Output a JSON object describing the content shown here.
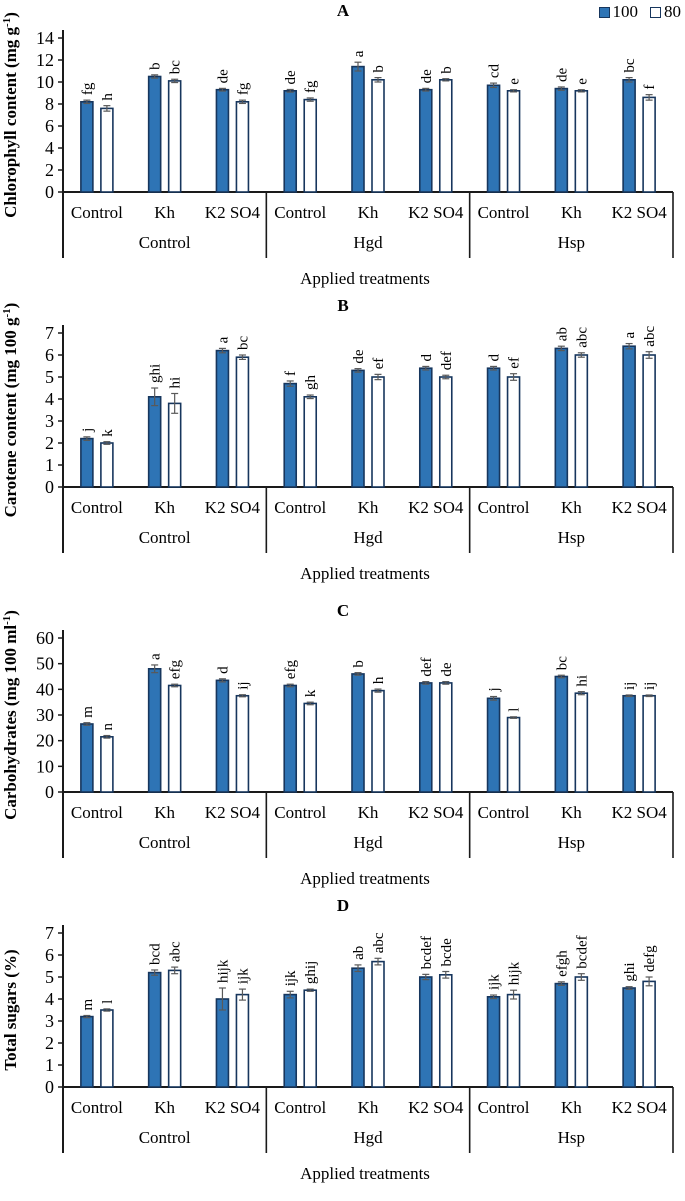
{
  "legend": {
    "items": [
      {
        "label": "100",
        "color": "#2E74B5"
      },
      {
        "label": "80",
        "color": "#FFFFFF"
      }
    ]
  },
  "colors": {
    "bar_fill_100": "#2E74B5",
    "bar_fill_80": "#FFFFFF",
    "bar_outline": "#17365d",
    "axis": "#1a1a1a",
    "error_bar": "#595959"
  },
  "chart_data": [
    {
      "type": "bar",
      "title": "A",
      "ylabel": "Chlorophyll content (mg g-1)",
      "ylabel_parts": [
        "Chlorophyll content (mg g",
        "^-1",
        ")"
      ],
      "xlabel": "Applied treatments",
      "ylim": [
        0,
        14
      ],
      "yticks": [
        0,
        2,
        4,
        6,
        8,
        10,
        12,
        14
      ],
      "groups": [
        "Control",
        "Hgd",
        "Hsp"
      ],
      "categories": [
        "Control",
        "Kh",
        "K2 SO4"
      ],
      "legend_position": "top-right",
      "grid": false,
      "series": [
        {
          "name": "100",
          "values": [
            8.2,
            10.5,
            9.3,
            9.2,
            11.4,
            9.3,
            9.7,
            9.4,
            10.2
          ],
          "errors": [
            0.15,
            0.15,
            0.12,
            0.12,
            0.4,
            0.12,
            0.2,
            0.15,
            0.2
          ],
          "letters": [
            "fg",
            "b",
            "de",
            "de",
            "a",
            "de",
            "cd",
            "de",
            "bc"
          ]
        },
        {
          "name": "80",
          "values": [
            7.6,
            10.1,
            8.2,
            8.4,
            10.2,
            10.2,
            9.2,
            9.2,
            8.6
          ],
          "errors": [
            0.25,
            0.15,
            0.15,
            0.15,
            0.2,
            0.1,
            0.1,
            0.1,
            0.25
          ],
          "letters": [
            "h",
            "bc",
            "fg",
            "fg",
            "b",
            "b",
            "e",
            "e",
            "f"
          ]
        }
      ]
    },
    {
      "type": "bar",
      "title": "B",
      "ylabel": "Carotene content (mg 100 g-1)",
      "ylabel_parts": [
        "Carotene content (mg 100 g",
        "^-1",
        ")"
      ],
      "xlabel": "Applied treatments",
      "ylim": [
        0,
        7
      ],
      "yticks": [
        0,
        1,
        2,
        3,
        4,
        5,
        6,
        7
      ],
      "groups": [
        "Control",
        "Hgd",
        "Hsp"
      ],
      "categories": [
        "Control",
        "Kh",
        "K2 SO4"
      ],
      "grid": false,
      "series": [
        {
          "name": "100",
          "values": [
            2.2,
            4.1,
            6.2,
            4.7,
            5.3,
            5.4,
            5.4,
            6.3,
            6.4
          ],
          "errors": [
            0.08,
            0.4,
            0.1,
            0.12,
            0.08,
            0.08,
            0.08,
            0.1,
            0.12
          ],
          "letters": [
            "j",
            "ghi",
            "a",
            "f",
            "de",
            "d",
            "d",
            "ab",
            "a"
          ]
        },
        {
          "name": "80",
          "values": [
            2.0,
            3.8,
            5.9,
            4.1,
            5.0,
            5.0,
            5.0,
            6.0,
            6.0
          ],
          "errors": [
            0.06,
            0.45,
            0.1,
            0.08,
            0.12,
            0.08,
            0.15,
            0.1,
            0.15
          ],
          "letters": [
            "k",
            "hi",
            "bc",
            "gh",
            "ef",
            "def",
            "ef",
            "abc",
            "abc"
          ]
        }
      ]
    },
    {
      "type": "bar",
      "title": "C",
      "ylabel": "Carbohydrates (mg 100 ml-1)",
      "ylabel_parts": [
        "Carbohydrates (mg 100 ml",
        "^-1",
        ")"
      ],
      "xlabel": "Applied treatments",
      "ylim": [
        0,
        60
      ],
      "yticks": [
        0,
        10,
        20,
        30,
        40,
        50,
        60
      ],
      "groups": [
        "Control",
        "Hgd",
        "Hsp"
      ],
      "categories": [
        "Control",
        "Kh",
        "K2 SO4"
      ],
      "grid": false,
      "series": [
        {
          "name": "100",
          "values": [
            26.5,
            48,
            43.5,
            41.5,
            46,
            42.5,
            36.5,
            45,
            37.5
          ],
          "errors": [
            0.5,
            1.5,
            0.6,
            0.5,
            0.5,
            0.5,
            0.7,
            0.5,
            0.3
          ],
          "letters": [
            "m",
            "a",
            "d",
            "efg",
            "b",
            "def",
            "j",
            "bc",
            "ij"
          ]
        },
        {
          "name": "80",
          "values": [
            21.5,
            41.5,
            37.5,
            34.5,
            39.5,
            42.5,
            29,
            38.5,
            37.5
          ],
          "errors": [
            0.5,
            0.5,
            0.4,
            0.5,
            0.6,
            0.5,
            0.3,
            0.6,
            0.3
          ],
          "letters": [
            "n",
            "efg",
            "ij",
            "k",
            "h",
            "de",
            "l",
            "hi",
            "ij"
          ]
        }
      ]
    },
    {
      "type": "bar",
      "title": "D",
      "ylabel": "Total sugars (%)",
      "ylabel_parts": [
        "Total sugars  (%)"
      ],
      "xlabel": "Applied treatments",
      "ylim": [
        0,
        7
      ],
      "yticks": [
        0,
        1,
        2,
        3,
        4,
        5,
        6,
        7
      ],
      "groups": [
        "Control",
        "Hgd",
        "Hsp"
      ],
      "categories": [
        "Control",
        "Kh",
        "K2 SO4"
      ],
      "grid": false,
      "series": [
        {
          "name": "100",
          "values": [
            3.2,
            5.2,
            4.0,
            4.2,
            5.4,
            5.0,
            4.1,
            4.7,
            4.5
          ],
          "errors": [
            0.05,
            0.12,
            0.5,
            0.15,
            0.15,
            0.12,
            0.08,
            0.08,
            0.06
          ],
          "letters": [
            "m",
            "bcd",
            "hijk",
            "ijk",
            "ab",
            "bcdef",
            "ijk",
            "efgh",
            "ghi"
          ]
        },
        {
          "name": "80",
          "values": [
            3.5,
            5.3,
            4.2,
            4.4,
            5.7,
            5.1,
            4.2,
            5.0,
            4.8
          ],
          "errors": [
            0.05,
            0.15,
            0.25,
            0.05,
            0.15,
            0.15,
            0.2,
            0.15,
            0.2
          ],
          "letters": [
            "l",
            "abc",
            "ijk",
            "ghij",
            "abc",
            "bcde",
            "hijk",
            "bcdef",
            "defg"
          ]
        }
      ]
    }
  ]
}
